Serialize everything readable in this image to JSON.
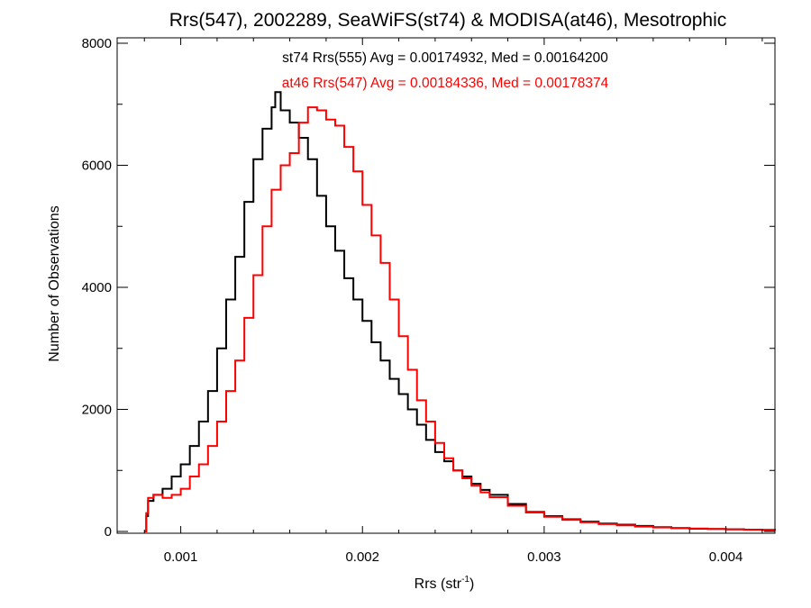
{
  "chart_data": {
    "type": "histogram",
    "title": "Rrs(547), 2002289, SeaWiFS(st74) & MODISA(at46), Mesotrophic",
    "xlabel_main": "Rrs (str",
    "xlabel_sup": "-1",
    "xlabel_close": ")",
    "ylabel": "Number of Observations",
    "xlim": [
      0.00065,
      0.00427
    ],
    "ylim": [
      0,
      8000
    ],
    "xticks": [
      0.001,
      0.002,
      0.003,
      0.004
    ],
    "xtick_labels": [
      "0.001",
      "0.002",
      "0.003",
      "0.004"
    ],
    "yticks": [
      0,
      2000,
      4000,
      6000,
      8000
    ],
    "ytick_labels": [
      "0",
      "2000",
      "4000",
      "6000",
      "8000"
    ],
    "grid": false,
    "series": [
      {
        "name": "st74 Rrs(555)",
        "color": "#000000",
        "annotation": "st74 Rrs(555) Avg = 0.00174932, Med = 0.00164200",
        "points": [
          [
            0.0008,
            0
          ],
          [
            0.00081,
            250
          ],
          [
            0.00082,
            500
          ],
          [
            0.00085,
            600
          ],
          [
            0.0009,
            700
          ],
          [
            0.00095,
            900
          ],
          [
            0.001,
            1100
          ],
          [
            0.00105,
            1400
          ],
          [
            0.0011,
            1800
          ],
          [
            0.00115,
            2300
          ],
          [
            0.0012,
            3000
          ],
          [
            0.00125,
            3800
          ],
          [
            0.0013,
            4500
          ],
          [
            0.00135,
            5400
          ],
          [
            0.0014,
            6100
          ],
          [
            0.00145,
            6600
          ],
          [
            0.0015,
            6950
          ],
          [
            0.00152,
            7200
          ],
          [
            0.00155,
            6900
          ],
          [
            0.0016,
            6700
          ],
          [
            0.00165,
            6450
          ],
          [
            0.0017,
            6100
          ],
          [
            0.00175,
            5500
          ],
          [
            0.0018,
            5000
          ],
          [
            0.00185,
            4600
          ],
          [
            0.0019,
            4150
          ],
          [
            0.00195,
            3800
          ],
          [
            0.002,
            3450
          ],
          [
            0.00205,
            3100
          ],
          [
            0.0021,
            2800
          ],
          [
            0.00215,
            2500
          ],
          [
            0.0022,
            2250
          ],
          [
            0.00225,
            2000
          ],
          [
            0.0023,
            1750
          ],
          [
            0.00235,
            1500
          ],
          [
            0.0024,
            1300
          ],
          [
            0.00245,
            1150
          ],
          [
            0.0025,
            1000
          ],
          [
            0.00255,
            900
          ],
          [
            0.0026,
            780
          ],
          [
            0.00265,
            680
          ],
          [
            0.0027,
            600
          ],
          [
            0.0028,
            450
          ],
          [
            0.0029,
            320
          ],
          [
            0.003,
            250
          ],
          [
            0.0031,
            200
          ],
          [
            0.0032,
            160
          ],
          [
            0.0033,
            130
          ],
          [
            0.0034,
            110
          ],
          [
            0.0035,
            90
          ],
          [
            0.0036,
            70
          ],
          [
            0.0037,
            55
          ],
          [
            0.0038,
            45
          ],
          [
            0.0039,
            40
          ],
          [
            0.004,
            35
          ],
          [
            0.0041,
            30
          ],
          [
            0.0042,
            25
          ],
          [
            0.00427,
            20
          ]
        ]
      },
      {
        "name": "at46 Rrs(547)",
        "color": "#ff0000",
        "annotation": "at46 Rrs(547) Avg = 0.00184336, Med = 0.00178374",
        "points": [
          [
            0.0008,
            0
          ],
          [
            0.00081,
            300
          ],
          [
            0.00082,
            550
          ],
          [
            0.00085,
            600
          ],
          [
            0.0009,
            550
          ],
          [
            0.00095,
            600
          ],
          [
            0.001,
            700
          ],
          [
            0.00105,
            900
          ],
          [
            0.0011,
            1100
          ],
          [
            0.00115,
            1400
          ],
          [
            0.0012,
            1800
          ],
          [
            0.00125,
            2300
          ],
          [
            0.0013,
            2800
          ],
          [
            0.00135,
            3500
          ],
          [
            0.0014,
            4200
          ],
          [
            0.00145,
            5000
          ],
          [
            0.0015,
            5600
          ],
          [
            0.00155,
            6000
          ],
          [
            0.0016,
            6200
          ],
          [
            0.00165,
            6700
          ],
          [
            0.0017,
            6950
          ],
          [
            0.00175,
            6900
          ],
          [
            0.0018,
            6750
          ],
          [
            0.00185,
            6650
          ],
          [
            0.0019,
            6300
          ],
          [
            0.00195,
            5900
          ],
          [
            0.002,
            5350
          ],
          [
            0.00205,
            4850
          ],
          [
            0.0021,
            4400
          ],
          [
            0.00215,
            3800
          ],
          [
            0.0022,
            3200
          ],
          [
            0.00225,
            2650
          ],
          [
            0.0023,
            2150
          ],
          [
            0.00235,
            1800
          ],
          [
            0.0024,
            1450
          ],
          [
            0.00245,
            1200
          ],
          [
            0.0025,
            1000
          ],
          [
            0.00255,
            870
          ],
          [
            0.0026,
            750
          ],
          [
            0.00265,
            640
          ],
          [
            0.0027,
            560
          ],
          [
            0.0028,
            420
          ],
          [
            0.0029,
            310
          ],
          [
            0.003,
            240
          ],
          [
            0.0031,
            190
          ],
          [
            0.0032,
            150
          ],
          [
            0.0033,
            120
          ],
          [
            0.0034,
            100
          ],
          [
            0.0035,
            80
          ],
          [
            0.0036,
            65
          ],
          [
            0.0037,
            55
          ],
          [
            0.0038,
            48
          ],
          [
            0.0039,
            40
          ],
          [
            0.004,
            34
          ],
          [
            0.0041,
            28
          ],
          [
            0.0042,
            24
          ],
          [
            0.00427,
            20
          ]
        ]
      }
    ]
  }
}
